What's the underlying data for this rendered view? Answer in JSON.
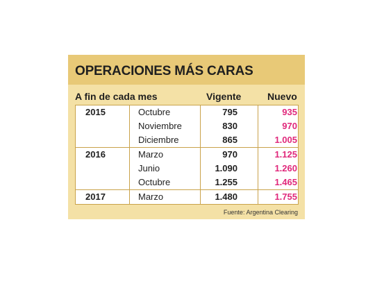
{
  "title": "OPERACIONES MÁS CARAS",
  "headers": {
    "period": "A fin de cada mes",
    "vigente": "Vigente",
    "nuevo": "Nuevo"
  },
  "source": "Fuente: Argentina Clearing",
  "colors": {
    "accent": "#e0287b",
    "title_band": "#e8c977",
    "card": "#f4e1a6",
    "border": "#c9a24a"
  },
  "chart_data": {
    "type": "table",
    "title": "OPERACIONES MÁS CARAS",
    "columns": [
      "A fin de cada mes",
      "",
      "Vigente",
      "Nuevo"
    ],
    "groups": [
      {
        "year": "2015",
        "rows": [
          {
            "month": "Octubre",
            "vigente": "795",
            "nuevo": "935"
          },
          {
            "month": "Noviembre",
            "vigente": "830",
            "nuevo": "970"
          },
          {
            "month": "Diciembre",
            "vigente": "865",
            "nuevo": "1.005"
          }
        ]
      },
      {
        "year": "2016",
        "rows": [
          {
            "month": "Marzo",
            "vigente": "970",
            "nuevo": "1.125"
          },
          {
            "month": "Junio",
            "vigente": "1.090",
            "nuevo": "1.260"
          },
          {
            "month": "Octubre",
            "vigente": "1.255",
            "nuevo": "1.465"
          }
        ]
      },
      {
        "year": "2017",
        "rows": [
          {
            "month": "Marzo",
            "vigente": "1.480",
            "nuevo": "1.755"
          }
        ]
      }
    ]
  }
}
